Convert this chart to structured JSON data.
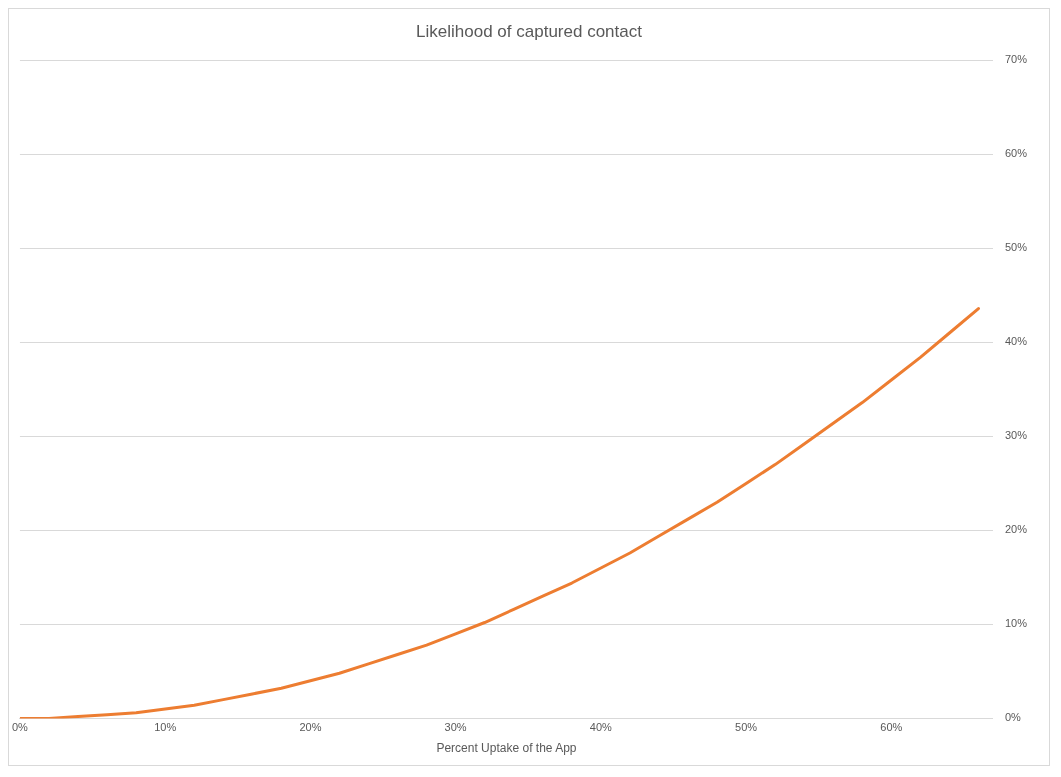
{
  "chart_data": {
    "type": "line",
    "title": "Likelihood of captured contact",
    "xlabel": "Percent Uptake of the App",
    "x": [
      0,
      2,
      4,
      6,
      8,
      10,
      12,
      14,
      16,
      18,
      20,
      22,
      24,
      26,
      28,
      30,
      32,
      34,
      36,
      38,
      40,
      42,
      44,
      46,
      48,
      50,
      52,
      54,
      56,
      58,
      60,
      62,
      64,
      66
    ],
    "series": [
      {
        "color": "#ed7d31",
        "values": [
          0,
          0,
          0.2,
          0.4,
          0.6,
          1.0,
          1.4,
          2.0,
          2.6,
          3.2,
          4.0,
          4.8,
          5.8,
          6.8,
          7.8,
          9.0,
          10.2,
          11.6,
          13.0,
          14.4,
          16.0,
          17.6,
          19.4,
          21.2,
          23.0,
          25.0,
          27.0,
          29.2,
          31.4,
          33.6,
          36.0,
          38.4,
          41.0,
          43.6
        ]
      }
    ],
    "xlim": [
      0,
      67
    ],
    "xticks": [
      {
        "value": 0,
        "label": "0%"
      },
      {
        "value": 10,
        "label": "10%"
      },
      {
        "value": 20,
        "label": "20%"
      },
      {
        "value": 30,
        "label": "30%"
      },
      {
        "value": 40,
        "label": "40%"
      },
      {
        "value": 50,
        "label": "50%"
      },
      {
        "value": 60,
        "label": "60%"
      }
    ],
    "ylim": [
      0,
      70
    ],
    "yticks": [
      {
        "value": 0,
        "label": "0%"
      },
      {
        "value": 10,
        "label": "10%"
      },
      {
        "value": 20,
        "label": "20%"
      },
      {
        "value": 30,
        "label": "30%"
      },
      {
        "value": 40,
        "label": "40%"
      },
      {
        "value": 50,
        "label": "50%"
      },
      {
        "value": 60,
        "label": "60%"
      },
      {
        "value": 70,
        "label": "70%"
      }
    ],
    "grid": "y",
    "legend": false,
    "marker": "none",
    "line_style": "solid"
  }
}
